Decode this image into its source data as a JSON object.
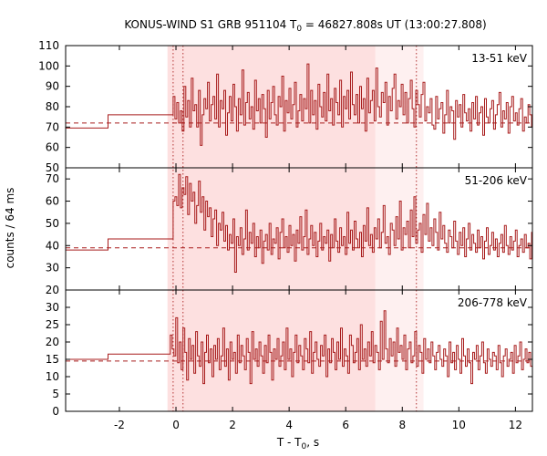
{
  "chart_data": {
    "type": "line",
    "title": {
      "prefix": "KONUS-WIND S1 GRB 951104 T",
      "subscript": "0",
      "suffix": " = 46827.808s UT (13:00:27.808)"
    },
    "xlabel": {
      "prefix": "T - T",
      "subscript": "0",
      "suffix": ", s"
    },
    "ylabel": "counts / 64 ms",
    "xlim": [
      -3.9,
      12.6
    ],
    "xticks": [
      -2,
      0,
      2,
      4,
      6,
      8,
      10,
      12
    ],
    "shaded_intervals": [
      {
        "x0": -0.3,
        "x1": 7.05,
        "color": "#fde0e0"
      },
      {
        "x0": 7.05,
        "x1": 8.75,
        "color": "#fef0f0"
      }
    ],
    "vertical_markers": [
      -0.1,
      0.25,
      8.5
    ],
    "series_color": "#a81c1c",
    "panels": [
      {
        "label": "13-51 keV",
        "ylim": [
          50,
          110
        ],
        "yticks": [
          50,
          60,
          70,
          80,
          90,
          100,
          110
        ],
        "background": 72,
        "pre_trigger_steps": [
          {
            "x0": -3.9,
            "x1": -2.4,
            "y": 69.5
          },
          {
            "x0": -2.4,
            "x1": -0.1,
            "y": 76
          }
        ],
        "start": -0.1,
        "bin_width": 0.064,
        "counts": [
          85,
          74,
          82,
          72,
          78,
          68,
          90,
          75,
          83,
          70,
          94,
          78,
          81,
          70,
          88,
          61,
          76,
          84,
          79,
          92,
          73,
          81,
          85,
          74,
          96,
          70,
          83,
          79,
          88,
          66,
          77,
          85,
          73,
          91,
          80,
          68,
          84,
          76,
          98,
          71,
          82,
          87,
          74,
          80,
          69,
          93,
          78,
          84,
          72,
          86,
          79,
          65,
          88,
          74,
          82,
          90,
          76,
          71,
          85,
          80,
          95,
          68,
          83,
          77,
          89,
          74,
          81,
          92,
          70,
          78,
          86,
          73,
          84,
          79,
          101,
          72,
          88,
          76,
          83,
          69,
          91,
          80,
          75,
          87,
          73,
          96,
          78,
          84,
          71,
          89,
          82,
          76,
          93,
          70,
          85,
          79,
          88,
          74,
          97,
          81,
          76,
          86,
          72,
          90,
          79,
          84,
          68,
          94,
          77,
          83,
          88,
          73,
          99,
          80,
          75,
          87,
          82,
          92,
          71,
          85,
          78,
          89,
          96,
          74,
          83,
          80,
          91,
          76,
          87,
          72,
          84,
          93,
          79,
          70,
          88,
          81,
          75,
          86,
          92,
          73,
          80,
          77,
          84,
          71,
          69,
          85,
          74,
          79,
          82,
          67,
          76,
          88,
          72,
          80,
          78,
          64,
          83,
          75,
          81,
          70,
          86,
          77,
          73,
          79,
          68,
          82,
          74,
          85,
          71,
          77,
          80,
          66,
          84,
          75,
          72,
          79,
          83,
          69,
          76,
          81,
          87,
          70,
          78,
          74,
          82,
          67,
          80,
          85,
          73,
          77,
          71,
          79,
          84,
          68,
          75,
          72,
          81,
          76,
          70,
          83,
          78,
          74,
          65,
          80,
          72,
          88,
          76,
          69,
          82,
          75,
          79,
          73
        ]
      },
      {
        "label": "51-206 keV",
        "ylim": [
          20,
          75
        ],
        "yticks": [
          20,
          30,
          40,
          50,
          60,
          70
        ],
        "background": 39,
        "pre_trigger_steps": [
          {
            "x0": -3.9,
            "x1": -2.4,
            "y": 38
          },
          {
            "x0": -2.4,
            "x1": -0.1,
            "y": 43
          }
        ],
        "start": -0.1,
        "bin_width": 0.064,
        "counts": [
          60,
          62,
          58,
          72,
          57,
          66,
          63,
          71,
          54,
          68,
          60,
          64,
          50,
          58,
          69,
          55,
          62,
          47,
          60,
          53,
          57,
          44,
          52,
          56,
          40,
          50,
          47,
          55,
          42,
          49,
          38,
          45,
          41,
          52,
          28,
          44,
          40,
          48,
          36,
          43,
          56,
          38,
          46,
          41,
          50,
          35,
          44,
          39,
          47,
          32,
          42,
          45,
          38,
          50,
          36,
          43,
          41,
          48,
          34,
          46,
          52,
          39,
          44,
          37,
          49,
          40,
          45,
          33,
          47,
          41,
          53,
          38,
          44,
          56,
          36,
          43,
          49,
          40,
          46,
          35,
          42,
          50,
          38,
          44,
          41,
          47,
          33,
          45,
          39,
          52,
          42,
          37,
          48,
          40,
          44,
          36,
          55,
          41,
          47,
          38,
          51,
          43,
          39,
          46,
          35,
          49,
          42,
          57,
          40,
          45,
          37,
          48,
          43,
          52,
          39,
          46,
          58,
          41,
          44,
          36,
          50,
          47,
          40,
          53,
          43,
          60,
          38,
          48,
          45,
          51,
          39,
          56,
          44,
          62,
          41,
          47,
          50,
          37,
          54,
          45,
          59,
          42,
          48,
          40,
          52,
          46,
          38,
          55,
          43,
          49,
          41,
          37,
          47,
          44,
          39,
          51,
          42,
          36,
          46,
          40,
          48,
          35,
          43,
          50,
          38,
          45,
          41,
          37,
          47,
          39,
          44,
          34,
          42,
          48,
          36,
          40,
          46,
          38,
          43,
          35,
          41,
          45,
          37,
          49,
          40,
          36,
          44,
          38,
          42,
          47,
          35,
          40,
          43,
          37,
          45,
          39,
          41,
          34,
          46,
          38,
          42,
          36,
          44,
          40,
          37,
          43,
          39,
          35,
          41,
          38,
          44,
          36,
          40,
          42,
          37,
          39,
          45
        ]
      },
      {
        "label": "206-778 keV",
        "ylim": [
          0,
          35
        ],
        "yticks": [
          0,
          5,
          10,
          15,
          20,
          25,
          30
        ],
        "background": 14.5,
        "pre_trigger_steps": [
          {
            "x0": -3.9,
            "x1": -2.4,
            "y": 15
          },
          {
            "x0": -2.4,
            "x1": -0.2,
            "y": 16.5
          }
        ],
        "start": -0.2,
        "bin_width": 0.064,
        "counts": [
          22,
          18,
          16,
          27,
          14,
          20,
          12,
          24,
          17,
          9,
          21,
          15,
          19,
          11,
          23,
          16,
          13,
          20,
          8,
          17,
          22,
          14,
          18,
          10,
          19,
          15,
          21,
          12,
          16,
          24,
          13,
          18,
          9,
          20,
          15,
          17,
          11,
          22,
          14,
          19,
          16,
          12,
          21,
          17,
          8,
          23,
          15,
          18,
          13,
          20,
          16,
          11,
          19,
          14,
          22,
          17,
          9,
          18,
          15,
          21,
          13,
          16,
          20,
          12,
          24,
          15,
          18,
          10,
          17,
          22,
          14,
          19,
          16,
          12,
          21,
          18,
          14,
          23,
          11,
          17,
          20,
          15,
          13,
          19,
          16,
          22,
          10,
          18,
          14,
          21,
          17,
          12,
          20,
          15,
          24,
          13,
          18,
          16,
          11,
          22,
          19,
          14,
          17,
          21,
          12,
          25,
          15,
          18,
          13,
          20,
          16,
          23,
          14,
          19,
          17,
          12,
          26,
          15,
          29,
          18,
          14,
          21,
          16,
          20,
          13,
          24,
          17,
          19,
          15,
          22,
          12,
          18,
          20,
          14,
          16,
          23,
          13,
          19,
          17,
          11,
          21,
          15,
          18,
          14,
          20,
          16,
          12,
          17,
          19,
          15,
          13,
          18,
          16,
          10,
          20,
          14,
          17,
          12,
          19,
          15,
          11,
          21,
          16,
          13,
          18,
          14,
          8,
          17,
          15,
          19,
          12,
          16,
          20,
          14,
          11,
          18,
          15,
          13,
          17,
          16,
          12,
          19,
          14,
          10,
          16,
          18,
          13,
          15,
          17,
          11,
          19,
          14,
          16,
          20,
          12,
          15,
          18,
          14,
          17,
          13,
          16,
          15,
          19,
          12,
          17,
          14,
          16,
          18,
          13,
          15,
          17,
          14
        ]
      }
    ]
  }
}
